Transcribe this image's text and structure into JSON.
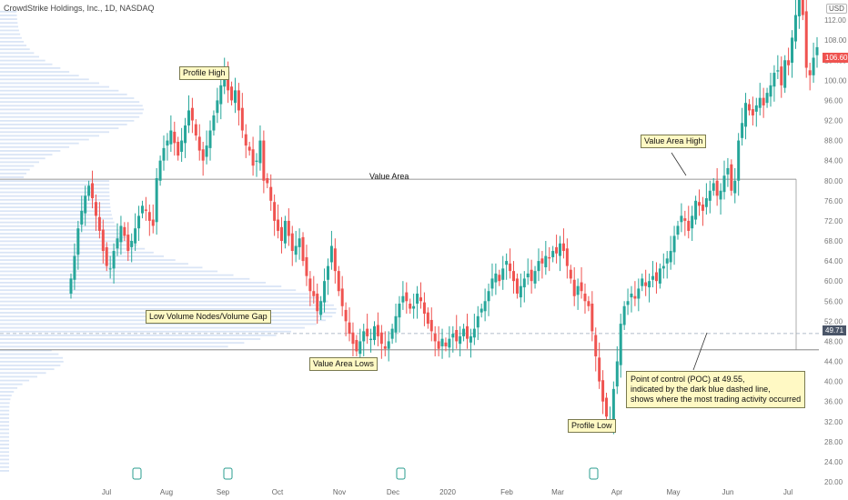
{
  "header": {
    "symbol_line": "CrowdStrike Holdings, Inc., 1D, NASDAQ",
    "currency": "USD"
  },
  "annotations": {
    "profile_high": "Profile High",
    "profile_low": "Profile Low",
    "value_area": "Value Area",
    "value_area_high": "Value Area High",
    "value_area_lows": "Value Area Lows",
    "low_volume": "Low Volume Nodes/Volume Gap",
    "poc_note": "Point of control (POC) at 49.55,\nindicated by the dark blue dashed line,\nshows where the most trading activity occurred"
  },
  "price_tags": {
    "last": "106.60",
    "poc": "49.71"
  },
  "colors": {
    "up": "#26a69a",
    "down": "#ef5350",
    "volume_profile": "#d6e2f5",
    "poc_line": "#9aa7b8",
    "last_tag": "#ef5350",
    "poc_tag": "#4a5568",
    "callout_bg": "#fff9c4"
  },
  "chart_data": {
    "type": "candlestick",
    "title": "CrowdStrike Holdings, Inc., 1D, NASDAQ",
    "ylim": [
      20,
      116
    ],
    "y_ticks": [
      20,
      24,
      28,
      32,
      36,
      40,
      44,
      48,
      52,
      56,
      60,
      64,
      68,
      72,
      76,
      80,
      84,
      88,
      92,
      96,
      100,
      104,
      108,
      112
    ],
    "x_ticks": [
      "Jul",
      "Aug",
      "Sep",
      "Oct",
      "Nov",
      "Dec",
      "2020",
      "Feb",
      "Mar",
      "Apr",
      "May",
      "Jun",
      "Jul"
    ],
    "earnings_markers": 4,
    "value_area_high": 80.3,
    "value_area_low": 46.3,
    "poc": 49.55,
    "last_price": 106.6,
    "poc_label_price": 49.71,
    "profile_high": 101.88,
    "profile_low": 31.95,
    "closes": [
      60.5,
      65.0,
      70.5,
      74.0,
      77.0,
      79.0,
      76.5,
      73.0,
      70.0,
      66.0,
      63.0,
      62.5,
      66.0,
      68.5,
      71.0,
      69.0,
      66.0,
      68.0,
      70.5,
      73.0,
      75.0,
      74.0,
      72.0,
      71.0,
      80.5,
      84.0,
      86.5,
      88.0,
      90.0,
      87.5,
      85.0,
      88.0,
      91.0,
      94.0,
      92.0,
      89.0,
      86.0,
      84.0,
      87.0,
      90.0,
      93.0,
      96.0,
      99.0,
      101.5,
      98.0,
      96.0,
      98.0,
      94.0,
      90.0,
      87.0,
      86.0,
      83.0,
      84.0,
      88.0,
      80.0,
      79.5,
      76.0,
      72.0,
      70.0,
      68.0,
      72.0,
      69.0,
      66.0,
      67.0,
      68.5,
      64.0,
      61.0,
      58.0,
      57.0,
      54.0,
      56.0,
      60.0,
      63.0,
      67.0,
      62.0,
      58.0,
      55.0,
      52.0,
      49.5,
      47.5,
      46.0,
      48.0,
      50.0,
      49.0,
      48.5,
      51.0,
      49.0,
      47.5,
      46.5,
      48.0,
      50.5,
      53.0,
      55.5,
      57.0,
      56.0,
      54.5,
      55.0,
      57.5,
      56.0,
      53.5,
      51.5,
      50.0,
      48.0,
      46.5,
      48.5,
      47.0,
      48.5,
      49.5,
      48.0,
      49.0,
      50.5,
      48.5,
      49.0,
      50.5,
      53.0,
      54.5,
      56.0,
      58.0,
      60.5,
      61.5,
      60.0,
      62.5,
      64.0,
      62.0,
      60.0,
      57.5,
      59.0,
      60.5,
      61.5,
      60.0,
      62.0,
      64.0,
      63.5,
      65.0,
      64.5,
      66.0,
      65.5,
      67.5,
      66.0,
      63.0,
      60.5,
      57.0,
      59.0,
      58.0,
      56.0,
      55.0,
      50.0,
      45.0,
      40.0,
      36.0,
      33.0,
      32.5,
      38.5,
      44.0,
      51.5,
      55.0,
      56.0,
      57.5,
      56.5,
      58.5,
      60.5,
      59.0,
      60.0,
      61.0,
      60.0,
      62.5,
      63.0,
      64.5,
      66.0,
      69.0,
      71.0,
      73.0,
      72.0,
      70.0,
      73.0,
      76.0,
      75.0,
      74.0,
      76.5,
      78.0,
      79.5,
      77.0,
      78.0,
      81.0,
      82.5,
      78.0,
      80.0,
      88.0,
      91.5,
      95.5,
      94.0,
      93.0,
      95.0,
      96.5,
      95.0,
      97.5,
      99.0,
      101.5,
      102.0,
      99.0,
      104.0,
      103.0,
      108.5,
      113.0,
      116.0,
      113.0,
      102.5,
      101.0,
      104.5,
      106.6
    ]
  }
}
